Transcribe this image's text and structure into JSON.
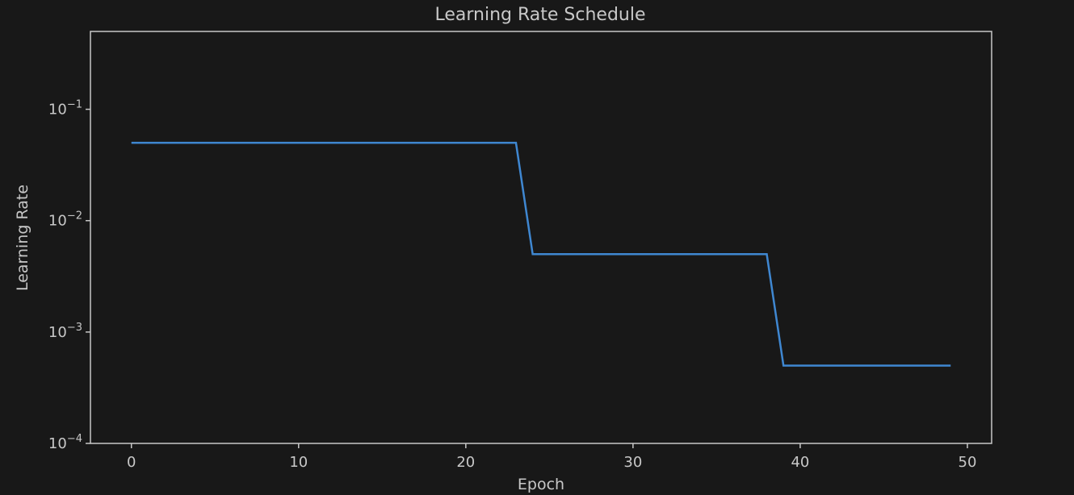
{
  "chart_data": {
    "type": "line",
    "title": "Learning Rate Schedule",
    "xlabel": "Epoch",
    "ylabel": "Learning Rate",
    "yscale": "log",
    "xlim": [
      -2.45,
      51.45
    ],
    "ylim": [
      0.0001,
      0.5
    ],
    "grid": false,
    "x_ticks": [
      0,
      10,
      20,
      30,
      40,
      50
    ],
    "y_ticks": [
      {
        "value": 0.0001,
        "base": "10",
        "exp": "−4"
      },
      {
        "value": 0.001,
        "base": "10",
        "exp": "−3"
      },
      {
        "value": 0.01,
        "base": "10",
        "exp": "−2"
      },
      {
        "value": 0.1,
        "base": "10",
        "exp": "−1"
      }
    ],
    "colors": {
      "background": "#181818",
      "axes": "#c8c8c8",
      "text": "#c8c8c8",
      "line": "#3f87d1"
    },
    "series": [
      {
        "x": [
          0,
          1,
          2,
          3,
          4,
          5,
          6,
          7,
          8,
          9,
          10,
          11,
          12,
          13,
          14,
          15,
          16,
          17,
          18,
          19,
          20,
          21,
          22,
          23,
          24,
          25,
          26,
          27,
          28,
          29,
          30,
          31,
          32,
          33,
          34,
          35,
          36,
          37,
          38,
          39,
          40,
          41,
          42,
          43,
          44,
          45,
          46,
          47,
          48,
          49
        ],
        "y": [
          0.05,
          0.05,
          0.05,
          0.05,
          0.05,
          0.05,
          0.05,
          0.05,
          0.05,
          0.05,
          0.05,
          0.05,
          0.05,
          0.05,
          0.05,
          0.05,
          0.05,
          0.05,
          0.05,
          0.05,
          0.05,
          0.05,
          0.05,
          0.05,
          0.005,
          0.005,
          0.005,
          0.005,
          0.005,
          0.005,
          0.005,
          0.005,
          0.005,
          0.005,
          0.005,
          0.005,
          0.005,
          0.005,
          0.005,
          0.0005,
          0.0005,
          0.0005,
          0.0005,
          0.0005,
          0.0005,
          0.0005,
          0.0005,
          0.0005,
          0.0005,
          0.0005
        ]
      }
    ]
  }
}
